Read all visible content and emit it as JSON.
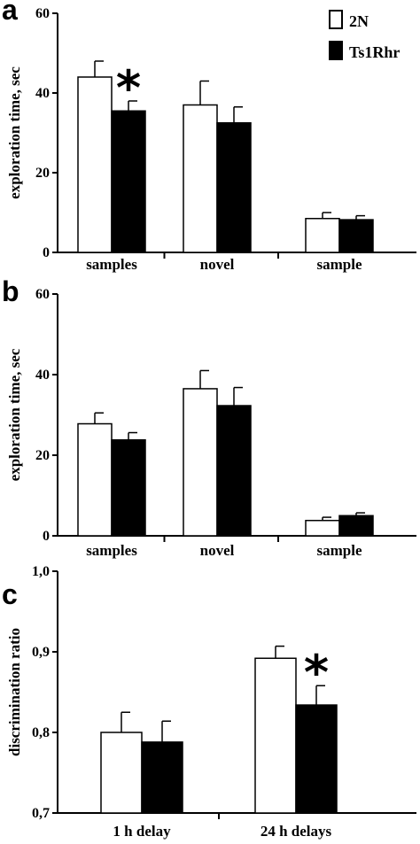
{
  "colors": {
    "2N": "#ffffff",
    "Ts1Rhr": "#000000",
    "axis": "#000000"
  },
  "legend": [
    {
      "label": "2N",
      "swatch": "open-square"
    },
    {
      "label": "Ts1Rhr",
      "swatch": "filled-square"
    }
  ],
  "chart_data": [
    {
      "panel": "a",
      "type": "bar",
      "ylabel": "exploration time, sec",
      "ylim": [
        0,
        60
      ],
      "yticks": [
        "0",
        "20",
        "40",
        "60"
      ],
      "ytick_values": [
        0,
        20,
        40,
        60
      ],
      "categories": [
        "samples",
        "novel",
        "sample"
      ],
      "series": [
        {
          "name": "2N",
          "values": [
            44,
            37,
            8.5
          ],
          "errors": [
            4,
            6,
            1.5
          ]
        },
        {
          "name": "Ts1Rhr",
          "values": [
            35.5,
            32.5,
            8.2
          ],
          "errors": [
            2.5,
            4,
            1
          ]
        }
      ],
      "annotations": [
        {
          "text": "*",
          "category": 0,
          "series": 1
        }
      ]
    },
    {
      "panel": "b",
      "type": "bar",
      "ylabel": "exploration time, sec",
      "ylim": [
        0,
        60
      ],
      "yticks": [
        "0",
        "20",
        "40",
        "60"
      ],
      "ytick_values": [
        0,
        20,
        40,
        60
      ],
      "categories": [
        "samples",
        "novel",
        "sample"
      ],
      "series": [
        {
          "name": "2N",
          "values": [
            27.8,
            36.5,
            3.8
          ],
          "errors": [
            2.7,
            4.5,
            0.8
          ]
        },
        {
          "name": "Ts1Rhr",
          "values": [
            23.8,
            32.3,
            5.0
          ],
          "errors": [
            1.8,
            4.5,
            0.7
          ]
        }
      ],
      "annotations": []
    },
    {
      "panel": "c",
      "type": "bar",
      "ylabel": "discrimination ratio",
      "ylim": [
        0.7,
        1.0
      ],
      "yticks": [
        "0,7",
        "0,8",
        "0,9",
        "1,0"
      ],
      "ytick_values": [
        0.7,
        0.8,
        0.9,
        1.0
      ],
      "categories": [
        "1 h delay",
        "24 h delays"
      ],
      "series": [
        {
          "name": "2N",
          "values": [
            0.8,
            0.892
          ],
          "errors": [
            0.025,
            0.015
          ]
        },
        {
          "name": "Ts1Rhr",
          "values": [
            0.788,
            0.834
          ],
          "errors": [
            0.026,
            0.024
          ]
        }
      ],
      "annotations": [
        {
          "text": "*",
          "category": 1,
          "series": 1
        }
      ]
    }
  ]
}
